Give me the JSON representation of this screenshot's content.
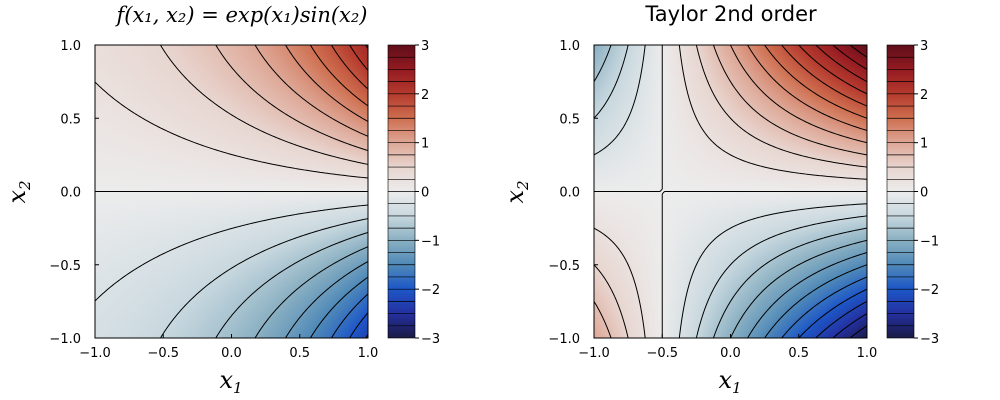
{
  "chart_data": [
    {
      "type": "heatmap",
      "title": "f(x₁, x₂) = exp(x₁)sin(x₂)",
      "function": "exp(x1)*sin(x2)",
      "xlabel": "x₁",
      "ylabel": "x₂",
      "xlim": [
        -1.0,
        1.0
      ],
      "ylim": [
        -1.0,
        1.0
      ],
      "xticks": [
        "−1.0",
        "−0.5",
        "0.0",
        "0.5",
        "1.0"
      ],
      "yticks": [
        "−1.0",
        "−0.5",
        "0.0",
        "0.5",
        "1.0"
      ],
      "xtick_values": [
        -1.0,
        -0.5,
        0.0,
        0.5,
        1.0
      ],
      "ytick_values": [
        -1.0,
        -0.5,
        0.0,
        0.5,
        1.0
      ],
      "contour_levels": [
        -2.75,
        -2.5,
        -2.25,
        -2.0,
        -1.75,
        -1.5,
        -1.25,
        -1.0,
        -0.75,
        -0.5,
        -0.25,
        0.0,
        0.25,
        0.5,
        0.75,
        1.0,
        1.25,
        1.5,
        1.75,
        2.0,
        2.25,
        2.5,
        2.75
      ],
      "colorbar": {
        "range": [
          -3,
          3
        ],
        "ticks": [
          "−3",
          "−2",
          "−1",
          "0",
          "1",
          "2",
          "3"
        ],
        "tick_values": [
          -3,
          -2,
          -1,
          0,
          1,
          2,
          3
        ]
      },
      "grid": false
    },
    {
      "type": "heatmap",
      "title": "Taylor 2nd order",
      "function": "2*(x1+0.5)*x2 (second-order expansion about x1=-0.5, x2=0 as shown)",
      "xlabel": "x₁",
      "ylabel": "x₂",
      "xlim": [
        -1.0,
        1.0
      ],
      "ylim": [
        -1.0,
        1.0
      ],
      "xticks": [
        "−1.0",
        "−0.5",
        "0.0",
        "0.5",
        "1.0"
      ],
      "yticks": [
        "−1.0",
        "−0.5",
        "0.0",
        "0.5",
        "1.0"
      ],
      "xtick_values": [
        -1.0,
        -0.5,
        0.0,
        0.5,
        1.0
      ],
      "ytick_values": [
        -1.0,
        -0.5,
        0.0,
        0.5,
        1.0
      ],
      "contour_levels": [
        -2.75,
        -2.5,
        -2.25,
        -2.0,
        -1.75,
        -1.5,
        -1.25,
        -1.0,
        -0.75,
        -0.5,
        -0.25,
        0.0,
        0.25,
        0.5,
        0.75,
        1.0,
        1.25,
        1.5,
        1.75,
        2.0,
        2.25,
        2.5,
        2.75
      ],
      "colorbar": {
        "range": [
          -3,
          3
        ],
        "ticks": [
          "−3",
          "−2",
          "−1",
          "0",
          "1",
          "2",
          "3"
        ],
        "tick_values": [
          -3,
          -2,
          -1,
          0,
          1,
          2,
          3
        ]
      },
      "grid": false
    }
  ],
  "colormap": [
    "#1b1b46",
    "#2430a0",
    "#1e58c8",
    "#4f89b8",
    "#8ab0c2",
    "#c8d8df",
    "#ececec",
    "#e8d6d0",
    "#dea796",
    "#cf6f50",
    "#b53a2e",
    "#951b22",
    "#5e0e1a"
  ]
}
